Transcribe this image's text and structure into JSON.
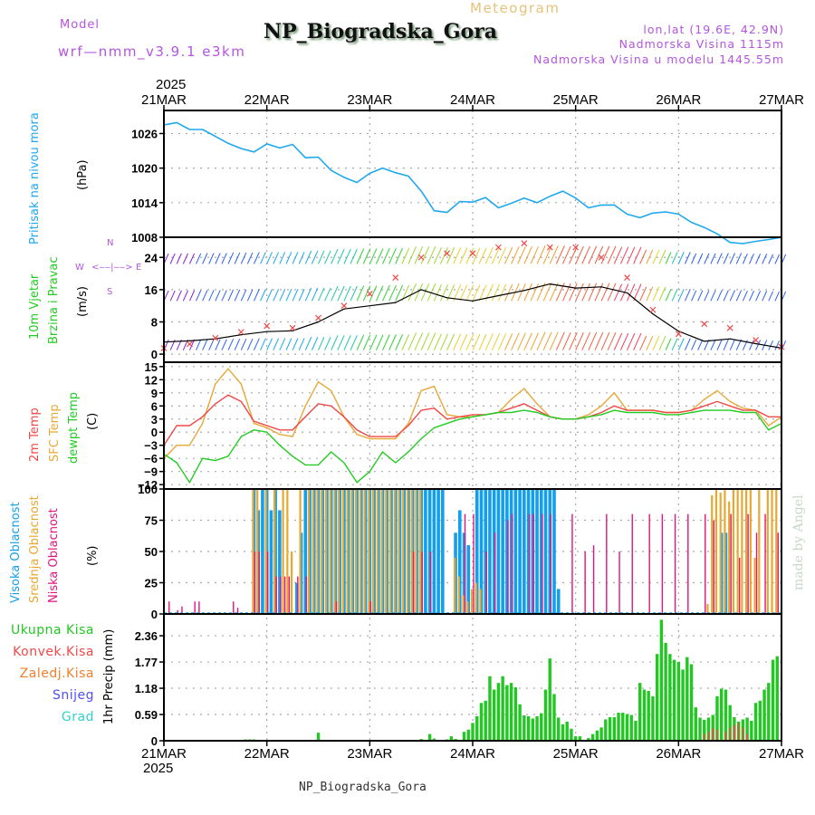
{
  "header": {
    "model_label": "Model",
    "model_name": "wrf—nmm_v3.9.1  e3km",
    "subtitle": "Meteogram",
    "title": "NP_Biogradska_Gora",
    "lonlat": "lon,lat (19.6E, 42.9N)",
    "altitude": "Nadmorska Visina 1115m",
    "model_altitude": "Nadmorska Visina u modelu 1445.55m"
  },
  "footer": {
    "station": "NP_Biogradska_Gora",
    "credit": "made by Angel"
  },
  "colors": {
    "pressure": "#1ea8ee",
    "temp2m": "#f04848",
    "sfc_temp": "#e8a838",
    "dewpt": "#22cc22",
    "high_cloud": "#12a0ee",
    "mid_cloud": "#e8a830",
    "low_cloud": "#e0157f",
    "total_precip": "#22c822",
    "conv_precip": "#f04848",
    "wind_label": "#22cc22",
    "compass": "#b455e0"
  },
  "chart_data": [
    {
      "id": "pressure",
      "type": "line",
      "ylabel": "Pritisak na nivou mora",
      "units": "(hPa)",
      "yticks": [
        "1026",
        "1020",
        "1014",
        "1008"
      ],
      "ylim": [
        1008,
        1030
      ],
      "x": [
        0,
        3,
        6,
        9,
        12,
        15,
        18,
        21,
        24,
        27,
        30,
        33,
        36,
        39,
        42,
        45,
        48,
        51,
        54,
        57,
        60,
        63,
        66,
        69,
        72,
        75,
        78,
        81,
        84,
        87,
        90,
        93,
        96,
        99,
        102,
        105,
        108,
        111,
        114,
        117,
        120,
        123,
        126,
        129,
        132,
        135,
        138,
        141,
        144
      ],
      "series": [
        {
          "name": "MSLP",
          "values": [
            1027.5,
            1027.9,
            1026.7,
            1026.7,
            1025.5,
            1024.3,
            1023.4,
            1022.8,
            1024.2,
            1023.5,
            1024.1,
            1021.8,
            1021.9,
            1019.6,
            1018.4,
            1017.5,
            1019.1,
            1020.0,
            1019.2,
            1018.6,
            1016.0,
            1012.6,
            1012.3,
            1014.2,
            1014.1,
            1014.9,
            1013.1,
            1013.9,
            1014.8,
            1014.0,
            1015.1,
            1016.0,
            1014.8,
            1013.1,
            1013.6,
            1013.6,
            1012.0,
            1011.4,
            1012.2,
            1012.4,
            1012.0,
            1010.6,
            1009.7,
            1008.6,
            1007.1,
            1006.9,
            1007.3,
            1007.6,
            1008.0
          ]
        }
      ]
    },
    {
      "id": "wind",
      "type": "line",
      "ylabel": [
        "10m Vjetar",
        "Brzina i Pravac"
      ],
      "units": "(m/s)",
      "compass": {
        "n": "N",
        "s": "S",
        "w": "W",
        "e": "E"
      },
      "yticks": [
        "24",
        "16",
        "8",
        "0"
      ],
      "ylim": [
        -2,
        29
      ],
      "x": [
        0,
        6,
        12,
        18,
        24,
        30,
        36,
        42,
        48,
        54,
        60,
        66,
        72,
        78,
        84,
        90,
        96,
        102,
        108,
        114,
        120,
        126,
        132,
        138,
        144
      ],
      "series": [
        {
          "name": "wind speed (black)",
          "values": [
            3.0,
            3.3,
            3.8,
            4.8,
            5.6,
            5.8,
            8.0,
            11.2,
            12.0,
            12.8,
            16.0,
            14.0,
            13.2,
            14.5,
            15.8,
            17.4,
            16.4,
            16.7,
            15.2,
            10.0,
            5.7,
            3.2,
            3.8,
            2.6,
            1.5
          ]
        },
        {
          "name": "wind gust (red x)",
          "values": [
            1.5,
            2.5,
            4.0,
            5.5,
            7.0,
            6.5,
            9.0,
            12.0,
            15.0,
            19.0,
            24.0,
            25.0,
            25.0,
            26.5,
            27.5,
            26.5,
            26.5,
            24.0,
            19.0,
            11.0,
            5.0,
            7.5,
            6.5,
            3.5,
            1.8
          ]
        }
      ],
      "barbs_rows": [
        2,
        14,
        23,
        -1
      ]
    },
    {
      "id": "temperature",
      "type": "line",
      "ylabel": [
        "2m Temp",
        "SFC Temp",
        "dewpt Temp"
      ],
      "units": "(C)",
      "yticks": [
        "15",
        "12",
        "9",
        "6",
        "3",
        "0",
        "−3",
        "−6",
        "−9",
        "−12"
      ],
      "ylim": [
        -13,
        16
      ],
      "x": [
        0,
        3,
        6,
        9,
        12,
        15,
        18,
        21,
        24,
        27,
        30,
        33,
        36,
        39,
        42,
        45,
        48,
        51,
        54,
        57,
        60,
        63,
        66,
        69,
        72,
        75,
        78,
        81,
        84,
        87,
        90,
        93,
        96,
        99,
        102,
        105,
        108,
        111,
        114,
        117,
        120,
        123,
        126,
        129,
        132,
        135,
        138,
        141,
        144
      ],
      "series": [
        {
          "name": "2m Temp",
          "values": [
            -3,
            1.5,
            1.5,
            3.5,
            6.5,
            8.5,
            7,
            2.5,
            1.5,
            0.5,
            0.5,
            3.5,
            6.5,
            6.0,
            3.5,
            0.5,
            -1.0,
            -1.0,
            -1.0,
            1.5,
            5.0,
            5.5,
            3.0,
            3.5,
            4.0,
            4.0,
            4.5,
            5.5,
            6.5,
            5.0,
            3.5,
            3.0,
            3.0,
            3.5,
            4.5,
            6.0,
            5.0,
            5.0,
            5.0,
            4.5,
            4.5,
            5.0,
            6.0,
            7.0,
            6.0,
            5.0,
            5.0,
            3.5,
            3.5
          ]
        },
        {
          "name": "SFC Temp",
          "values": [
            -6,
            -3,
            -3,
            2,
            11,
            14.5,
            11,
            2,
            1,
            -0.5,
            -1,
            6,
            11.5,
            9.5,
            3.5,
            -0.5,
            -1.5,
            -1.5,
            -1.5,
            2,
            9.5,
            10.5,
            4,
            3.5,
            3.5,
            4,
            4.5,
            7.5,
            10,
            6.5,
            3.5,
            3,
            3,
            4,
            6,
            9,
            5,
            5,
            5,
            4.5,
            4.5,
            5,
            7.5,
            9.5,
            7,
            5.5,
            5,
            1.5,
            3.5
          ]
        },
        {
          "name": "dewpt Temp",
          "values": [
            -5,
            -7,
            -11.5,
            -6,
            -6.5,
            -5.5,
            -1,
            0.5,
            0,
            -3,
            -5.5,
            -7.5,
            -7.5,
            -4.5,
            -7,
            -11.5,
            -9,
            -4.5,
            -7,
            -4.5,
            -1.5,
            1,
            2,
            3,
            3.5,
            4,
            4.5,
            4.5,
            5.0,
            4.5,
            3.5,
            3.0,
            3.0,
            3.5,
            4.0,
            5.0,
            4.5,
            4.5,
            4.5,
            4.0,
            4.0,
            4.5,
            5.0,
            5.0,
            5.0,
            4.5,
            4.5,
            0.5,
            2
          ]
        }
      ]
    },
    {
      "id": "cloud",
      "type": "bar",
      "ylabel": [
        "Visoka Oblacnost",
        "Srednja Oblacnost",
        "Niska Oblacnost"
      ],
      "units": "(%)",
      "yticks": [
        "100",
        "75",
        "50",
        "25",
        "0"
      ],
      "ylim": [
        0,
        100
      ],
      "x_hours_high": [
        21,
        22,
        23,
        24,
        25,
        26,
        27,
        28,
        29,
        30,
        31,
        32,
        33,
        34,
        35,
        36,
        37,
        38,
        39,
        40,
        41,
        42,
        43,
        44,
        45,
        46,
        47,
        48,
        49,
        50,
        51,
        52,
        53,
        54,
        55,
        56,
        57,
        58,
        59,
        60,
        61,
        62,
        63,
        64,
        65,
        66,
        67,
        68,
        69,
        70,
        71,
        72,
        73,
        74,
        75,
        76,
        77,
        78,
        79,
        80,
        81,
        82,
        83,
        84,
        85,
        86,
        87,
        88,
        89,
        90,
        91,
        92,
        130,
        131
      ],
      "high": [
        100,
        83,
        100,
        100,
        83,
        100,
        83,
        0,
        0,
        0,
        25,
        65,
        100,
        100,
        100,
        100,
        100,
        100,
        100,
        100,
        100,
        100,
        100,
        100,
        100,
        100,
        100,
        100,
        100,
        100,
        100,
        100,
        100,
        100,
        100,
        100,
        100,
        100,
        100,
        100,
        100,
        100,
        100,
        100,
        100,
        0,
        0,
        65,
        83,
        65,
        55,
        0,
        100,
        100,
        100,
        100,
        100,
        100,
        100,
        100,
        100,
        100,
        100,
        100,
        100,
        100,
        100,
        100,
        100,
        100,
        100,
        20,
        65,
        65
      ],
      "x_hours_mid": [
        21,
        22,
        24,
        26,
        28,
        29,
        30,
        32,
        34,
        35,
        36,
        37,
        38,
        39,
        40,
        41,
        42,
        43,
        44,
        45,
        46,
        47,
        48,
        49,
        50,
        51,
        52,
        53,
        54,
        55,
        56,
        57,
        58,
        59,
        60,
        68,
        69,
        70,
        71,
        72,
        73,
        74,
        127,
        128,
        129,
        130,
        131,
        132,
        133,
        134,
        135,
        136,
        137,
        138,
        139,
        141,
        142,
        143
      ],
      "mid": [
        100,
        100,
        100,
        100,
        100,
        100,
        50,
        100,
        100,
        100,
        100,
        100,
        100,
        100,
        100,
        100,
        100,
        100,
        100,
        100,
        100,
        100,
        100,
        100,
        100,
        100,
        100,
        100,
        100,
        100,
        100,
        100,
        100,
        100,
        100,
        45,
        30,
        15,
        10,
        20,
        25,
        20,
        8,
        95,
        100,
        97,
        100,
        90,
        100,
        100,
        100,
        100,
        100,
        45,
        100,
        100,
        100,
        100
      ],
      "x_hours_low": [
        1,
        3,
        4,
        7,
        8,
        16,
        17,
        21,
        22,
        24,
        26,
        27,
        28,
        29,
        31,
        33,
        40,
        48,
        58,
        60,
        62,
        68,
        70,
        72,
        75,
        77,
        80,
        81,
        85,
        86,
        88,
        90,
        95,
        98,
        100,
        103,
        106,
        109,
        113,
        116,
        119,
        122,
        126,
        128,
        132,
        134,
        136,
        138,
        140,
        143
      ],
      "low": [
        10,
        3,
        6,
        10,
        10,
        10,
        5,
        50,
        50,
        50,
        30,
        30,
        30,
        30,
        30,
        30,
        10,
        10,
        50,
        50,
        50,
        0,
        80,
        80,
        50,
        65,
        75,
        80,
        80,
        80,
        80,
        80,
        80,
        50,
        55,
        80,
        50,
        80,
        80,
        80,
        80,
        80,
        80,
        75,
        80,
        45,
        80,
        65,
        80,
        65
      ]
    },
    {
      "id": "precip",
      "type": "bar",
      "ylabel": "1hr Precip",
      "units": "(mm)",
      "legend": [
        "Ukupna Kisa",
        "Konvek.Kisa",
        "Zaledj.Kisa",
        "Snijeg",
        "Grad"
      ],
      "legend_colors": [
        "#22c822",
        "#f04848",
        "#f08030",
        "#5050f0",
        "#30d0d0"
      ],
      "yticks": [
        "2.36",
        "1.77",
        "1.18",
        "0.59",
        "0"
      ],
      "ylim": [
        0,
        2.85
      ],
      "x": [
        19,
        20,
        21,
        36,
        48,
        60,
        62,
        63,
        66,
        67,
        68,
        70,
        71,
        72,
        73,
        74,
        75,
        76,
        77,
        78,
        79,
        80,
        81,
        82,
        83,
        84,
        85,
        86,
        87,
        88,
        89,
        90,
        91,
        92,
        93,
        94,
        95,
        96,
        97,
        99,
        100,
        101,
        102,
        103,
        104,
        105,
        106,
        107,
        108,
        109,
        110,
        111,
        112,
        113,
        114,
        115,
        116,
        117,
        118,
        119,
        120,
        121,
        122,
        123,
        124,
        125,
        126,
        127,
        128,
        129,
        130,
        131,
        132,
        133,
        134,
        135,
        136,
        137,
        138,
        139,
        140,
        141,
        142,
        143
      ],
      "total": [
        0.03,
        0.03,
        0.03,
        0.18,
        0.02,
        0.04,
        0.15,
        0.05,
        0.03,
        0.1,
        0.04,
        0.2,
        0.25,
        0.4,
        0.55,
        0.85,
        0.9,
        1.45,
        1.15,
        1.3,
        1.45,
        1.25,
        1.3,
        1.2,
        0.82,
        0.57,
        0.55,
        0.5,
        0.55,
        0.62,
        1.15,
        1.85,
        1.05,
        0.52,
        0.37,
        0.43,
        0.27,
        0.1,
        0.1,
        0.06,
        0.15,
        0.23,
        0.3,
        0.48,
        0.53,
        0.53,
        0.63,
        0.63,
        0.6,
        0.58,
        0.45,
        1.3,
        1.15,
        1.12,
        1.0,
        1.95,
        2.72,
        2.2,
        1.95,
        1.82,
        1.77,
        1.6,
        1.88,
        1.72,
        0.75,
        0.52,
        0.47,
        0.52,
        0.58,
        1.0,
        1.17,
        1.15,
        0.8,
        0.53,
        0.43,
        0.48,
        0.52,
        0.45,
        0.85,
        0.9,
        1.15,
        1.3,
        1.82,
        1.9
      ]
    }
  ],
  "x_axis": {
    "year": "2025",
    "days": [
      "21MAR",
      "22MAR",
      "23MAR",
      "24MAR",
      "25MAR",
      "26MAR",
      "27MAR"
    ]
  }
}
